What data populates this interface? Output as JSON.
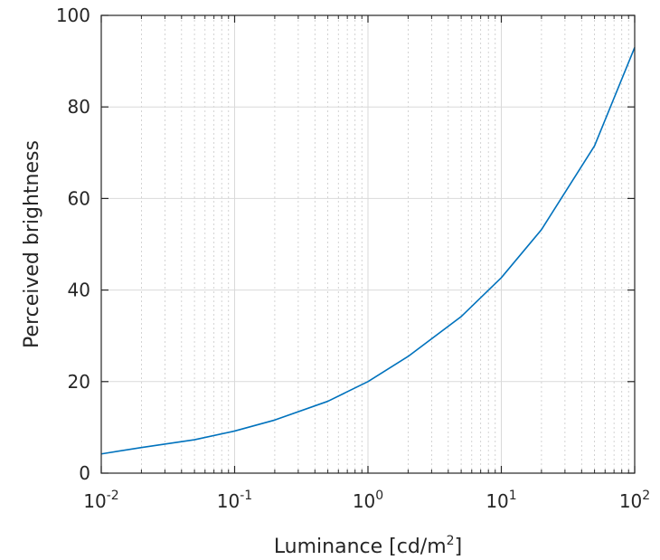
{
  "chart_data": {
    "type": "line",
    "xscale": "log",
    "xlim": [
      0.01,
      100
    ],
    "ylim": [
      0,
      100
    ],
    "xlabel": {
      "base": "Luminance [cd/m",
      "sup": "2",
      "close": "]"
    },
    "ylabel": "Perceived brightness",
    "x_ticks": [
      {
        "base": "10",
        "exp": "-2",
        "value": 0.01
      },
      {
        "base": "10",
        "exp": "-1",
        "value": 0.1
      },
      {
        "base": "10",
        "exp": "0",
        "value": 1
      },
      {
        "base": "10",
        "exp": "1",
        "value": 10
      },
      {
        "base": "10",
        "exp": "2",
        "value": 100
      }
    ],
    "y_ticks": [
      "0",
      "20",
      "40",
      "60",
      "80",
      "100"
    ],
    "grid": true,
    "minor_grid_x": true,
    "line_color": "#0072BD",
    "series": [
      {
        "x": [
          0.01,
          0.02,
          0.05,
          0.1,
          0.2,
          0.5,
          1,
          2,
          5,
          10,
          20,
          50,
          100
        ],
        "y": [
          4.2,
          5.6,
          7.3,
          9.2,
          11.6,
          15.7,
          20.0,
          25.5,
          34.2,
          42.7,
          53.2,
          71.5,
          93.0
        ]
      }
    ]
  }
}
